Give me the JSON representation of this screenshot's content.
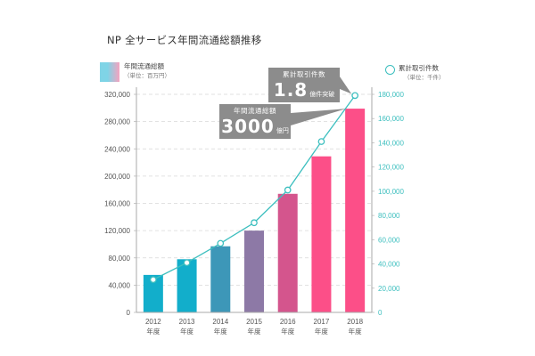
{
  "chart_data": {
    "type": "bar+line",
    "title": "NP 全サービス年間流通総額推移",
    "categories": [
      "2012",
      "2013",
      "2014",
      "2015",
      "2016",
      "2017",
      "2018"
    ],
    "category_suffix": "年度",
    "series": [
      {
        "name": "年間流通総額",
        "unit": "（単位：百万円）",
        "type": "bar",
        "axis": "left",
        "values": [
          55000,
          78000,
          97000,
          120000,
          174000,
          229000,
          299000
        ],
        "colors": [
          "#12aecb",
          "#12aecb",
          "#3d97b8",
          "#8d79a6",
          "#d4558d",
          "#fc4f88",
          "#fc4f88"
        ]
      },
      {
        "name": "累計取引件数",
        "unit": "（単位：千件）",
        "type": "line",
        "axis": "right",
        "values": [
          27000,
          41000,
          57000,
          74000,
          101000,
          141000,
          179000
        ],
        "color": "#3dbfbf"
      }
    ],
    "left_axis": {
      "min": 0,
      "max": 320000,
      "ticks": [
        "0",
        "40,000",
        "80,000",
        "120,000",
        "160,000",
        "200,000",
        "240,000",
        "280,000",
        "320,000"
      ]
    },
    "right_axis": {
      "min": 0,
      "max": 180000,
      "ticks": [
        "0",
        "20,000",
        "40,000",
        "60,000",
        "80,000",
        "100,000",
        "120,000",
        "140,000",
        "160,000",
        "180,000"
      ]
    },
    "grid": true,
    "legend": {
      "left": {
        "label": "年間流通総額",
        "sub": "（単位：百万円）"
      },
      "right": {
        "label": "累計取引件数",
        "sub": "（単位：千件）"
      }
    },
    "annotations": [
      {
        "label": "累計取引件数",
        "value": "1.8",
        "suffix": "億件突破"
      },
      {
        "label": "年間流通総額",
        "value": "3000",
        "suffix": "億円突破"
      }
    ]
  }
}
